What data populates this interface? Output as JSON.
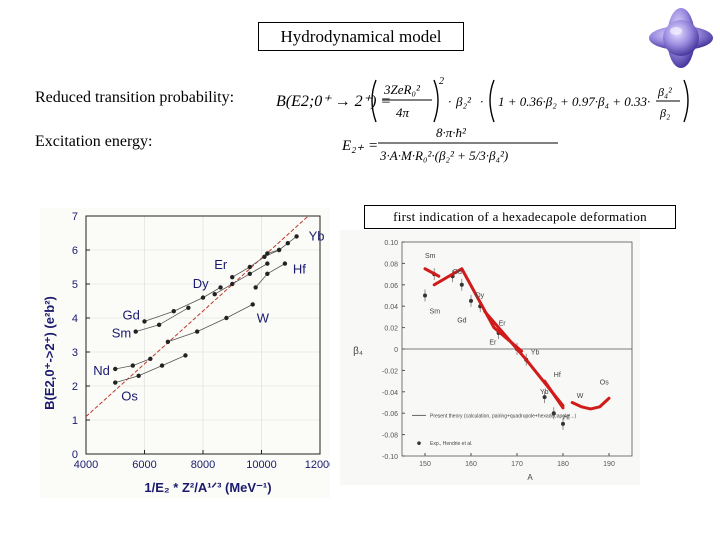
{
  "header": {
    "title": "Hydrodynamical model"
  },
  "labels": {
    "transition": "Reduced transition probability:",
    "excitation": "Excitation energy:"
  },
  "equations": {
    "b_lhs": "B(E2;0⁺ → 2⁺) =",
    "b_prefactor_num": "3ZeR₀²",
    "b_prefactor_den": "4π",
    "b_beta2sq": "β₂²",
    "b_bracket": "1 + 0.36·β₂ + 0.97·β₄ + 0.33·",
    "b_frac_num": "β₄²",
    "b_frac_den": "β₂",
    "e_lhs": "E₂₊ =",
    "e_num": "8·π·ħ²",
    "e_den": "3·A·M·R₀²·(β₂² + 5/3·β₄²)"
  },
  "note": "first indication of a hexadecapole deformation",
  "chart_data": [
    {
      "type": "scatter",
      "title": "",
      "xlabel": "1/E₂ * Z²/A¹ᐟ³ (MeV⁻¹)",
      "ylabel": "B(E2,0⁺->2⁺) (e²b²)",
      "xlim": [
        4000,
        12000
      ],
      "ylim": [
        0,
        7
      ],
      "xticks": [
        4000,
        6000,
        8000,
        10000,
        12000
      ],
      "yticks": [
        0,
        1,
        2,
        3,
        4,
        5,
        6,
        7
      ],
      "grid": true,
      "fit_line": {
        "x": [
          4000,
          11600
        ],
        "y": [
          1.1,
          7.0
        ],
        "color": "#c0392b",
        "style": "dashed"
      },
      "series": [
        {
          "name": "Nd",
          "points": [
            [
              5000,
              2.5
            ],
            [
              5600,
              2.6
            ],
            [
              6200,
              2.8
            ]
          ]
        },
        {
          "name": "Sm",
          "points": [
            [
              5700,
              3.6
            ],
            [
              6500,
              3.8
            ],
            [
              7500,
              4.3
            ]
          ]
        },
        {
          "name": "Gd",
          "points": [
            [
              6000,
              3.9
            ],
            [
              7000,
              4.2
            ],
            [
              8000,
              4.6
            ],
            [
              8600,
              4.9
            ]
          ]
        },
        {
          "name": "Dy",
          "points": [
            [
              8400,
              4.7
            ],
            [
              9000,
              5.0
            ],
            [
              9600,
              5.3
            ],
            [
              10200,
              5.6
            ]
          ]
        },
        {
          "name": "Er",
          "points": [
            [
              9000,
              5.2
            ],
            [
              9600,
              5.5
            ],
            [
              10100,
              5.8
            ],
            [
              10600,
              6.0
            ]
          ]
        },
        {
          "name": "Yb",
          "points": [
            [
              10200,
              5.9
            ],
            [
              10600,
              6.0
            ],
            [
              10900,
              6.2
            ],
            [
              11200,
              6.4
            ]
          ]
        },
        {
          "name": "Hf",
          "points": [
            [
              9800,
              4.9
            ],
            [
              10200,
              5.3
            ],
            [
              10800,
              5.6
            ]
          ]
        },
        {
          "name": "W",
          "points": [
            [
              6800,
              3.3
            ],
            [
              7800,
              3.6
            ],
            [
              8800,
              4.0
            ],
            [
              9700,
              4.4
            ]
          ]
        },
        {
          "name": "Os",
          "points": [
            [
              5000,
              2.1
            ],
            [
              5800,
              2.3
            ],
            [
              6600,
              2.6
            ],
            [
              7400,
              2.9
            ]
          ]
        }
      ],
      "label_color": "#1a1a6e"
    },
    {
      "type": "scatter",
      "title": "",
      "xlabel": "A",
      "ylabel": "β₄",
      "xlim": [
        145,
        195
      ],
      "ylim": [
        -0.1,
        0.1
      ],
      "xticks": [
        150,
        160,
        170,
        180,
        190
      ],
      "yticks": [
        0.1,
        0.08,
        0.06,
        0.04,
        0.02,
        0,
        -0.02,
        -0.04,
        -0.06,
        -0.08,
        -0.1
      ],
      "ytick_labels": [
        "0.10",
        "0.08",
        "0.06",
        "0.04",
        "0.02",
        "0",
        "-0.02",
        "-0.04",
        "-0.06",
        "-0.08",
        "-0.10"
      ],
      "xtick_labels": [
        "150",
        "160",
        "170",
        "180",
        "190"
      ],
      "element_labels": [
        {
          "text": "Sm",
          "x": 150,
          "y": 0.085
        },
        {
          "text": "Gd",
          "x": 156,
          "y": 0.07
        },
        {
          "text": "Dy",
          "x": 161,
          "y": 0.048
        },
        {
          "text": "Sm",
          "x": 151,
          "y": 0.033
        },
        {
          "text": "Gd",
          "x": 157,
          "y": 0.025
        },
        {
          "text": "Er",
          "x": 166,
          "y": 0.022
        },
        {
          "text": "Er",
          "x": 164,
          "y": 0.004
        },
        {
          "text": "Yb",
          "x": 173,
          "y": -0.005
        },
        {
          "text": "Hf",
          "x": 178,
          "y": -0.026
        },
        {
          "text": "Yb",
          "x": 175,
          "y": -0.042
        },
        {
          "text": "Hf",
          "x": 180,
          "y": -0.066
        },
        {
          "text": "W",
          "x": 183,
          "y": -0.046
        },
        {
          "text": "Os",
          "x": 188,
          "y": -0.033
        }
      ],
      "points": [
        [
          150,
          0.05
        ],
        [
          152,
          0.07
        ],
        [
          156,
          0.068
        ],
        [
          158,
          0.06
        ],
        [
          160,
          0.045
        ],
        [
          162,
          0.04
        ],
        [
          166,
          0.015
        ],
        [
          170,
          0.0
        ],
        [
          172,
          -0.01
        ],
        [
          176,
          -0.045
        ],
        [
          178,
          -0.06
        ],
        [
          180,
          -0.07
        ]
      ],
      "highlight_series": [
        {
          "name": "Sm",
          "x": [
            150,
            153
          ],
          "y": [
            0.075,
            0.068
          ]
        },
        {
          "name": "Gd-Er",
          "x": [
            152,
            158,
            165,
            171
          ],
          "y": [
            0.06,
            0.075,
            0.02,
            -0.002
          ]
        },
        {
          "name": "Dy-Hf",
          "x": [
            163,
            172,
            180
          ],
          "y": [
            0.035,
            -0.01,
            -0.053
          ]
        },
        {
          "name": "Hf",
          "x": [
            176,
            180
          ],
          "y": [
            -0.03,
            -0.055
          ]
        },
        {
          "name": "W-Os",
          "x": [
            182,
            184,
            186,
            188,
            190
          ],
          "y": [
            -0.05,
            -0.054,
            -0.056,
            -0.054,
            -0.046
          ]
        }
      ],
      "highlight_color": "#d11a1a",
      "legend": [
        "Present theory (calculation, pairing+quadrupole+hexadecapole ...)",
        "Exp., Hendrie et al."
      ]
    }
  ],
  "logo": {
    "shape": "hexadecapole-deformed-nucleus",
    "color": "#8a7ad8"
  }
}
